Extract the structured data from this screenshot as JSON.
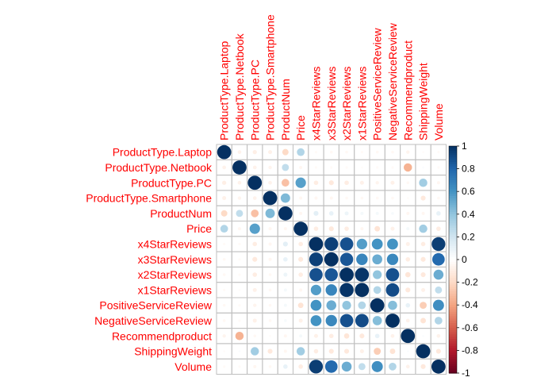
{
  "chart_data": {
    "type": "heatmap",
    "title": "",
    "variables": [
      "ProductType.Laptop",
      "ProductType.Netbook",
      "ProductType.PC",
      "ProductType.Smartphone",
      "ProductNum",
      "Price",
      "x4StarReviews",
      "x3StarReviews",
      "x2StarReviews",
      "x1StarReviews",
      "PositiveServiceReview",
      "NegativeServiceReview",
      "Recommendproduct",
      "ShippingWeight",
      "Volume"
    ],
    "matrix": [
      [
        1,
        -0.07,
        -0.09,
        -0.08,
        -0.2,
        0.3,
        -0.03,
        -0.04,
        -0.04,
        -0.03,
        -0.04,
        -0.04,
        -0.06,
        -0.02,
        -0.03
      ],
      [
        -0.07,
        1,
        -0.07,
        -0.06,
        0.25,
        -0.05,
        -0.03,
        -0.03,
        -0.03,
        -0.02,
        -0.03,
        -0.03,
        -0.35,
        0.02,
        -0.03
      ],
      [
        -0.09,
        -0.07,
        1,
        -0.07,
        -0.3,
        0.55,
        -0.1,
        -0.12,
        -0.1,
        -0.08,
        -0.06,
        -0.08,
        -0.04,
        0.35,
        -0.05
      ],
      [
        -0.08,
        -0.06,
        -0.07,
        1,
        0.45,
        -0.05,
        -0.05,
        -0.05,
        -0.04,
        -0.04,
        -0.04,
        -0.04,
        -0.02,
        -0.12,
        -0.04
      ],
      [
        -0.2,
        0.25,
        -0.3,
        0.45,
        1,
        -0.05,
        0.12,
        0.1,
        0.08,
        0.05,
        0.05,
        0.04,
        -0.05,
        -0.05,
        0.1
      ],
      [
        0.3,
        -0.05,
        0.55,
        -0.05,
        -0.05,
        1,
        -0.1,
        -0.12,
        -0.1,
        -0.05,
        -0.15,
        -0.08,
        0.05,
        0.35,
        -0.1
      ],
      [
        -0.03,
        -0.03,
        -0.1,
        -0.05,
        0.12,
        -0.1,
        1,
        0.94,
        0.88,
        0.56,
        0.6,
        0.6,
        -0.08,
        -0.1,
        0.95
      ],
      [
        -0.04,
        -0.03,
        -0.12,
        -0.05,
        0.1,
        -0.12,
        0.94,
        1,
        0.86,
        0.66,
        0.5,
        0.65,
        -0.1,
        -0.12,
        0.78
      ],
      [
        -0.04,
        -0.03,
        -0.1,
        -0.04,
        0.08,
        -0.1,
        0.88,
        0.86,
        1,
        0.98,
        0.4,
        0.88,
        -0.14,
        -0.12,
        0.5
      ],
      [
        -0.03,
        -0.02,
        -0.08,
        -0.04,
        0.05,
        -0.05,
        0.56,
        0.66,
        0.98,
        1,
        0.3,
        0.9,
        -0.12,
        -0.08,
        0.25
      ],
      [
        -0.04,
        -0.03,
        -0.06,
        -0.04,
        0.05,
        -0.15,
        0.6,
        0.5,
        0.4,
        0.3,
        1,
        0.43,
        0.1,
        -0.25,
        0.62
      ],
      [
        -0.04,
        -0.03,
        -0.08,
        -0.04,
        0.04,
        -0.08,
        0.6,
        0.65,
        0.88,
        0.9,
        0.43,
        1,
        -0.07,
        -0.15,
        0.3
      ],
      [
        -0.06,
        -0.35,
        -0.04,
        -0.02,
        -0.05,
        0.05,
        -0.08,
        -0.1,
        -0.14,
        -0.12,
        0.1,
        -0.07,
        1,
        0.02,
        -0.07
      ],
      [
        -0.02,
        0.02,
        0.35,
        -0.12,
        -0.05,
        0.35,
        -0.1,
        -0.12,
        -0.12,
        -0.08,
        -0.25,
        -0.15,
        0.02,
        1,
        -0.12
      ],
      [
        -0.03,
        -0.03,
        -0.05,
        -0.04,
        0.1,
        -0.1,
        0.95,
        0.78,
        0.5,
        0.25,
        0.62,
        0.3,
        -0.07,
        -0.12,
        1
      ]
    ],
    "legend": {
      "range": [
        -1,
        1
      ],
      "ticks": [
        "1",
        "0.8",
        "0.6",
        "0.4",
        "0.2",
        "0",
        "-0.2",
        "-0.4",
        "-0.6",
        "-0.8",
        "-1"
      ],
      "placement": "right"
    },
    "colors": {
      "label": "#ff0000",
      "grid": "#bfbfbf",
      "positive_max": "#053061",
      "negative_max": "#67001f"
    }
  }
}
